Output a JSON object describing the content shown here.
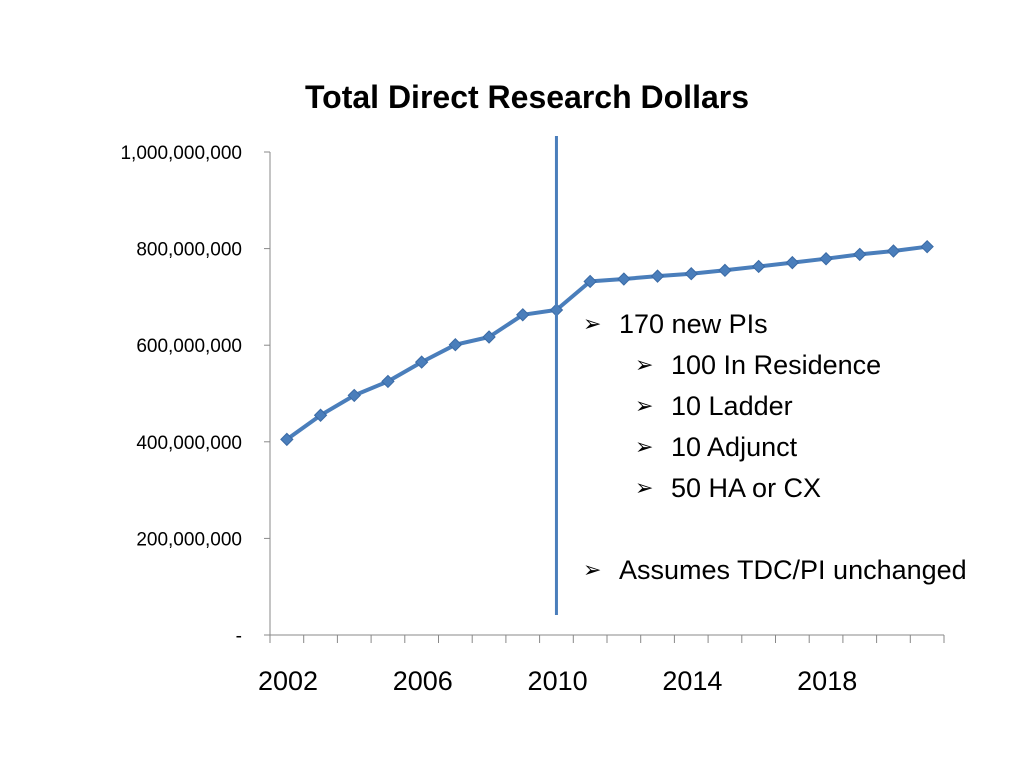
{
  "chart_data": {
    "type": "line",
    "title": "Total Direct Research Dollars",
    "xlabel": "",
    "ylabel": "",
    "x": [
      2002,
      2003,
      2004,
      2005,
      2006,
      2007,
      2008,
      2009,
      2010,
      2011,
      2012,
      2013,
      2014,
      2015,
      2016,
      2017,
      2018,
      2019,
      2020,
      2021
    ],
    "series": [
      {
        "values": [
          405000000,
          455000000,
          496000000,
          525000000,
          565000000,
          601000000,
          617000000,
          663000000,
          673000000,
          732000000,
          737000000,
          743000000,
          748000000,
          755000000,
          763000000,
          771000000,
          779000000,
          788000000,
          795000000,
          804000000
        ]
      }
    ],
    "xticks": [
      2002,
      2006,
      2010,
      2014,
      2018
    ],
    "xtick_labels": [
      "2002",
      "2006",
      "2010",
      "2014",
      "2018"
    ],
    "yticks": [
      0,
      200000000,
      400000000,
      600000000,
      800000000,
      1000000000
    ],
    "ytick_labels": [
      "-",
      "200,000,000",
      "400,000,000",
      "600,000,000",
      "800,000,000",
      "1,000,000,000"
    ],
    "ylim": [
      0,
      1000000000
    ],
    "vertical_marker": 2010.5,
    "grid": false,
    "legend": "none",
    "line_color": "#4a7ebb"
  },
  "annotations": {
    "bullet_glyph": "➢",
    "main_item": "170 new PIs",
    "sub_items": [
      "100 In Residence",
      "10 Ladder",
      "10 Adjunct",
      "50 HA or CX"
    ],
    "footer_item": "Assumes TDC/PI unchanged"
  }
}
